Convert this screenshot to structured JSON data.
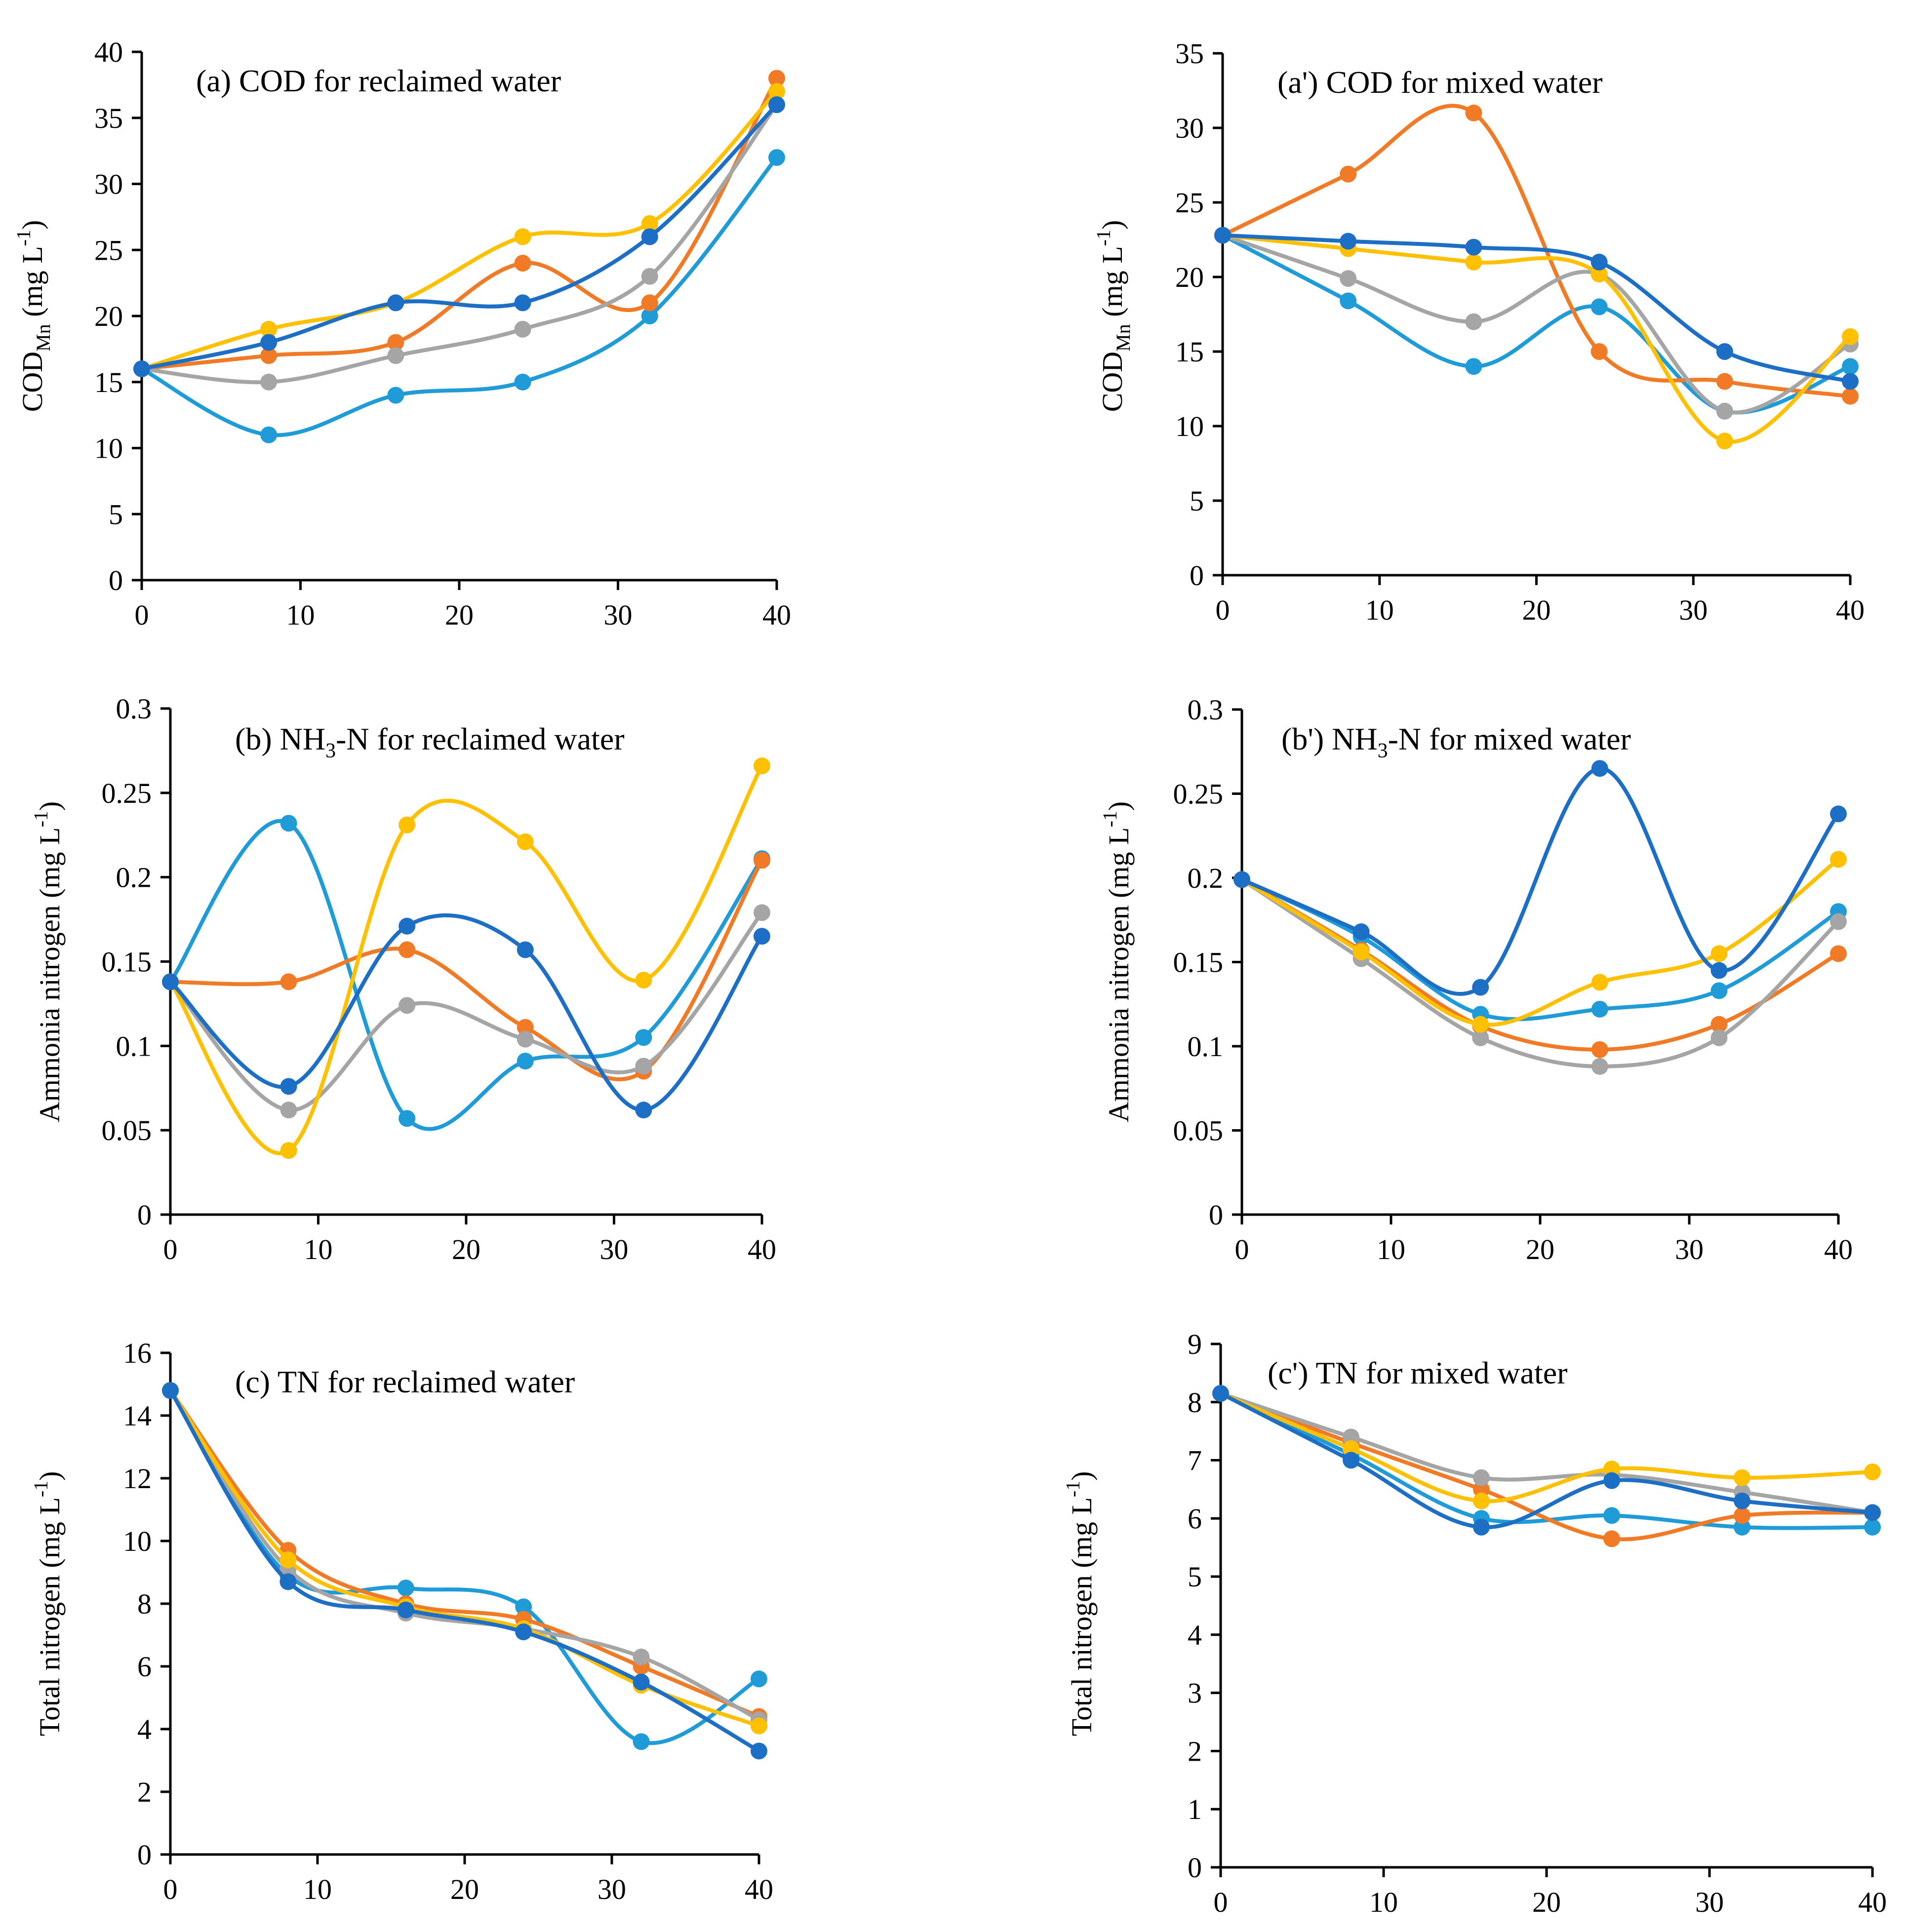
{
  "colors": {
    "series_1": "#1F9BD7",
    "series_2": "#F07A26",
    "series_3": "#A5A5A5",
    "series_4": "#FFC000",
    "series_5": "#1D6FC5"
  },
  "chart_data": [
    {
      "id": "a",
      "type": "line",
      "title": "(a) COD for reclaimed water",
      "ylabel": "COD",
      "ylabel_sub": "Mn",
      "ylabel_unit": " (mg L",
      "ylabel_sup": "-1",
      "ylabel_close": ")",
      "x": [
        0,
        8,
        16,
        24,
        32,
        40
      ],
      "xlim": [
        0,
        40
      ],
      "xticks": [
        0,
        10,
        20,
        30,
        40
      ],
      "ylim": [
        0,
        40
      ],
      "yticks": [
        0,
        5,
        10,
        15,
        20,
        25,
        30,
        35,
        40
      ],
      "series": [
        {
          "values": [
            16,
            11,
            14,
            15,
            20,
            32
          ]
        },
        {
          "values": [
            16,
            17,
            18,
            24,
            21,
            38
          ]
        },
        {
          "values": [
            16,
            15,
            17,
            19,
            23,
            36
          ]
        },
        {
          "values": [
            16,
            19,
            21,
            26,
            27,
            37
          ]
        },
        {
          "values": [
            16,
            18,
            21,
            21,
            26,
            36
          ]
        }
      ]
    },
    {
      "id": "a2",
      "type": "line",
      "title": "(a') COD for mixed water",
      "ylabel": "COD",
      "ylabel_sub": "Mn",
      "ylabel_unit": " (mg L",
      "ylabel_sup": "-1",
      "ylabel_close": ")",
      "x": [
        0,
        8,
        16,
        24,
        32,
        40
      ],
      "xlim": [
        0,
        40
      ],
      "xticks": [
        0,
        10,
        20,
        30,
        40
      ],
      "ylim": [
        0,
        35
      ],
      "yticks": [
        0,
        5,
        10,
        15,
        20,
        25,
        30,
        35
      ],
      "series": [
        {
          "values": [
            22.8,
            18.4,
            14,
            18,
            11,
            14
          ]
        },
        {
          "values": [
            22.8,
            26.9,
            31,
            15,
            13,
            12
          ]
        },
        {
          "values": [
            22.8,
            19.9,
            17,
            20.2,
            11,
            15.5
          ]
        },
        {
          "values": [
            22.8,
            21.9,
            21,
            20.2,
            9,
            16
          ]
        },
        {
          "values": [
            22.8,
            22.4,
            22,
            21,
            15,
            13
          ]
        }
      ]
    },
    {
      "id": "b",
      "type": "line",
      "title": "(b) NH",
      "title_sub": "3",
      "title_rest": "-N for reclaimed water",
      "ylabel": "Ammonia nitrogen (mg L",
      "ylabel_sup": "-1",
      "ylabel_close": ")",
      "x": [
        0,
        8,
        16,
        24,
        32,
        40
      ],
      "xlim": [
        0,
        40
      ],
      "xticks": [
        0,
        10,
        20,
        30,
        40
      ],
      "ylim": [
        0,
        0.3
      ],
      "yticks": [
        0,
        0.05,
        0.1,
        0.15,
        0.2,
        0.25,
        0.3
      ],
      "ytick_labels": [
        "0",
        "0.05",
        "0.1",
        "0.15",
        "0.2",
        "0.25",
        "0.3"
      ],
      "series": [
        {
          "values": [
            0.138,
            0.232,
            0.057,
            0.091,
            0.105,
            0.211
          ]
        },
        {
          "values": [
            0.138,
            0.138,
            0.157,
            0.111,
            0.085,
            0.21
          ]
        },
        {
          "values": [
            0.138,
            0.062,
            0.124,
            0.104,
            0.088,
            0.179
          ]
        },
        {
          "values": [
            0.138,
            0.038,
            0.231,
            0.221,
            0.139,
            0.266
          ]
        },
        {
          "values": [
            0.138,
            0.076,
            0.171,
            0.157,
            0.062,
            0.165
          ]
        }
      ]
    },
    {
      "id": "b2",
      "type": "line",
      "title": "(b') NH",
      "title_sub": "3",
      "title_rest": "-N for mixed water",
      "ylabel": "Ammonia nitrogen (mg L",
      "ylabel_sup": "-1",
      "ylabel_close": ")",
      "x": [
        0,
        8,
        16,
        24,
        32,
        40
      ],
      "xlim": [
        0,
        40
      ],
      "xticks": [
        0,
        10,
        20,
        30,
        40
      ],
      "ylim": [
        0,
        0.3
      ],
      "yticks": [
        0,
        0.05,
        0.1,
        0.15,
        0.2,
        0.25,
        0.3
      ],
      "ytick_labels": [
        "0",
        "0.05",
        "0.1",
        "0.15",
        "0.2",
        "0.25",
        "0.3"
      ],
      "series": [
        {
          "values": [
            0.199,
            0.165,
            0.119,
            0.122,
            0.133,
            0.18
          ]
        },
        {
          "values": [
            0.199,
            0.157,
            0.112,
            0.098,
            0.113,
            0.155
          ]
        },
        {
          "values": [
            0.199,
            0.152,
            0.105,
            0.088,
            0.105,
            0.174
          ]
        },
        {
          "values": [
            0.199,
            0.156,
            0.113,
            0.138,
            0.155,
            0.211
          ]
        },
        {
          "values": [
            0.199,
            0.168,
            0.135,
            0.265,
            0.145,
            0.238
          ]
        }
      ]
    },
    {
      "id": "c",
      "type": "line",
      "title": "(c) TN for reclaimed water",
      "ylabel": "Total nitrogen  (mg L",
      "ylabel_sup": "-1",
      "ylabel_close": ")",
      "x": [
        0,
        8,
        16,
        24,
        32,
        40
      ],
      "xlim": [
        0,
        40
      ],
      "xticks": [
        0,
        10,
        20,
        30,
        40
      ],
      "ylim": [
        0,
        16
      ],
      "yticks": [
        0,
        2,
        4,
        6,
        8,
        10,
        12,
        14,
        16
      ],
      "series": [
        {
          "values": [
            14.8,
            8.9,
            8.5,
            7.9,
            3.6,
            5.6
          ]
        },
        {
          "values": [
            14.8,
            9.7,
            8.0,
            7.5,
            6.0,
            4.4
          ]
        },
        {
          "values": [
            14.8,
            9.1,
            7.7,
            7.2,
            6.3,
            4.3
          ]
        },
        {
          "values": [
            14.8,
            9.4,
            7.9,
            7.2,
            5.4,
            4.1
          ]
        },
        {
          "values": [
            14.8,
            8.7,
            7.8,
            7.1,
            5.5,
            3.3
          ]
        }
      ]
    },
    {
      "id": "c2",
      "type": "line",
      "title": "(c') TN for mixed water",
      "ylabel": "Total nitrogen  (mg L",
      "ylabel_sup": "-1",
      "ylabel_close": ")",
      "x": [
        0,
        8,
        16,
        24,
        32,
        40
      ],
      "xlim": [
        0,
        40
      ],
      "xticks": [
        0,
        10,
        20,
        30,
        40
      ],
      "ylim": [
        0,
        9
      ],
      "yticks": [
        0,
        1,
        2,
        3,
        4,
        5,
        6,
        7,
        8,
        9
      ],
      "series": [
        {
          "values": [
            8.15,
            7.1,
            6.0,
            6.05,
            5.85,
            5.85
          ]
        },
        {
          "values": [
            8.15,
            7.3,
            6.5,
            5.65,
            6.05,
            6.1
          ]
        },
        {
          "values": [
            8.15,
            7.4,
            6.7,
            6.75,
            6.45,
            6.1
          ]
        },
        {
          "values": [
            8.15,
            7.2,
            6.3,
            6.85,
            6.7,
            6.8
          ]
        },
        {
          "values": [
            8.15,
            7.0,
            5.85,
            6.65,
            6.3,
            6.1
          ]
        }
      ]
    }
  ]
}
